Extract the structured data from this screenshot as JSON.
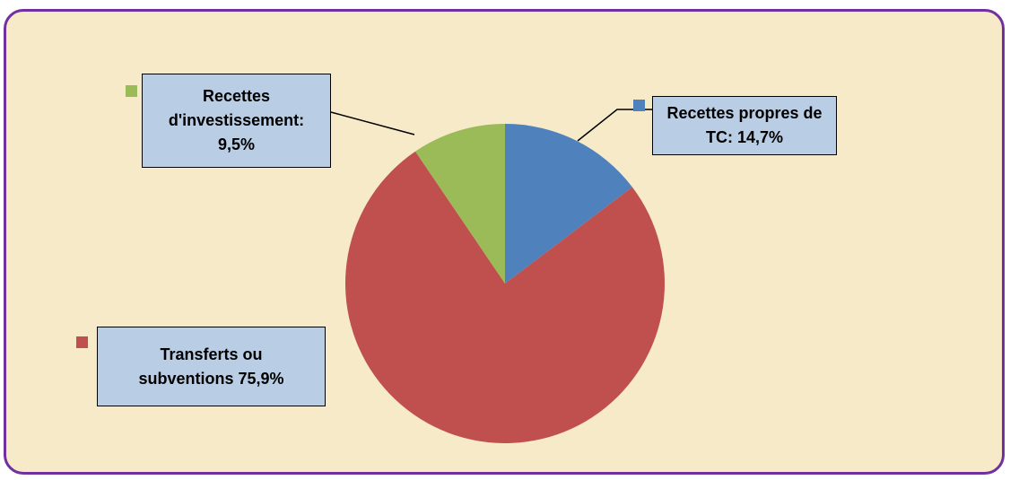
{
  "chart_data": {
    "type": "pie",
    "values": [
      14.7,
      75.9,
      9.5
    ],
    "value_labels": [
      "Recettes propres de TC: 14,7%",
      "Transferts ou subventions 75,9%",
      "Recettes d'investissement: 9,5%"
    ],
    "colors": [
      "#4f81bd",
      "#c0504d",
      "#9bbb59"
    ],
    "start_angle": 0,
    "direction": "clockwise"
  }
}
